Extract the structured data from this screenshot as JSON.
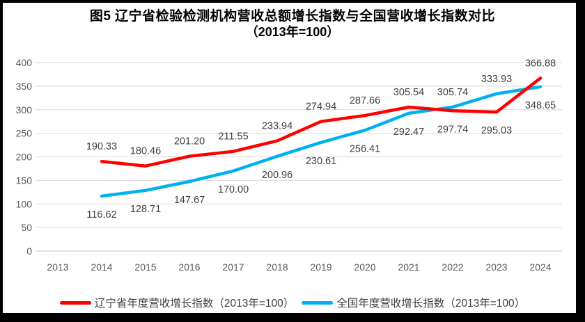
{
  "frame": {
    "border_color": "#000000",
    "background": "#ffffff"
  },
  "title": {
    "line1": "图5  辽宁省检验检测机构营收总额增长指数与全国营收增长指数对比",
    "line2": "（2013年=100）"
  },
  "chart_data": {
    "type": "line",
    "title": "图5 辽宁省检验检测机构营收总额增长指数与全国营收增长指数对比（2013年=100）",
    "categories": [
      "2013",
      "2014",
      "2015",
      "2016",
      "2017",
      "2018",
      "2019",
      "2020",
      "2021",
      "2022",
      "2023",
      "2024"
    ],
    "yticks": [
      0,
      50,
      100,
      150,
      200,
      250,
      300,
      350,
      400
    ],
    "ylim": [
      0,
      400
    ],
    "grid": true,
    "legend_position": "bottom",
    "series": [
      {
        "name": "辽宁省年度营收增长指数（2013年=100）",
        "color": "#FF0000",
        "values": [
          null,
          190.33,
          180.46,
          201.2,
          211.55,
          233.94,
          274.94,
          287.66,
          305.54,
          297.74,
          295.03,
          366.88
        ],
        "label_side": [
          null,
          "above",
          "above",
          "above",
          "above",
          "above",
          "above",
          "above",
          "above",
          "below",
          "below",
          "above"
        ]
      },
      {
        "name": "全国年度营收增长指数（2013年=100）",
        "color": "#00B0F0",
        "values": [
          null,
          116.62,
          128.71,
          147.67,
          170.0,
          200.96,
          230.61,
          256.41,
          292.47,
          305.74,
          333.93,
          348.65
        ],
        "label_side": [
          null,
          "below",
          "below",
          "below",
          "below",
          "below",
          "below",
          "below",
          "below",
          "above",
          "above",
          "below"
        ]
      }
    ]
  },
  "legend": {
    "items": [
      {
        "label": "辽宁省年度营收增长指数（2013年=100）",
        "color": "#FF0000"
      },
      {
        "label": "全国年度营收增长指数（2013年=100）",
        "color": "#00B0F0"
      }
    ]
  },
  "styles": {
    "grid_color": "#D9D9D9",
    "axis_color": "#C0C0C0",
    "tick_label_color": "#595959",
    "data_label_color": "#404040",
    "legend_text_color": "#404040",
    "title_color": "#000000"
  }
}
